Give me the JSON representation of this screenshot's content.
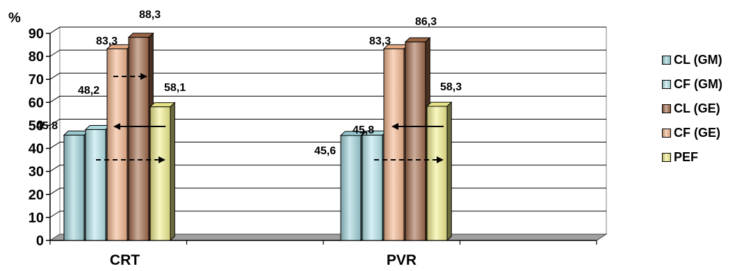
{
  "chart_data": {
    "type": "bar",
    "title": "",
    "ylabel": "%",
    "xlabel": "",
    "ylim": [
      0,
      90
    ],
    "yticks": [
      "0",
      "10",
      "20",
      "30",
      "40",
      "50",
      "60",
      "70",
      "80",
      "90"
    ],
    "categories": [
      "CRT",
      "PVR"
    ],
    "series": [
      {
        "name": "CL (GM)",
        "values": [
          45.8,
          45.6
        ],
        "labels": [
          "45,8",
          "45,6"
        ],
        "color": "#9fd3d9"
      },
      {
        "name": "CF (GM)",
        "values": [
          48.2,
          45.8
        ],
        "labels": [
          "48,2",
          "45,8"
        ],
        "color": "#b6e6ec"
      },
      {
        "name": "CL (GE)",
        "values": [
          88.3,
          86.3
        ],
        "labels": [
          "88,3",
          "86,3"
        ],
        "color": "#a26a4a"
      },
      {
        "name": "CF (GE)",
        "values": [
          83.3,
          83.3
        ],
        "labels": [
          "83,3",
          "83,3"
        ],
        "color": "#f4b58c"
      },
      {
        "name": "PEF",
        "values": [
          58.1,
          58.3
        ],
        "labels": [
          "58,1",
          "58,3"
        ],
        "color": "#f3f08e"
      }
    ],
    "grid": true,
    "legend": "right"
  }
}
